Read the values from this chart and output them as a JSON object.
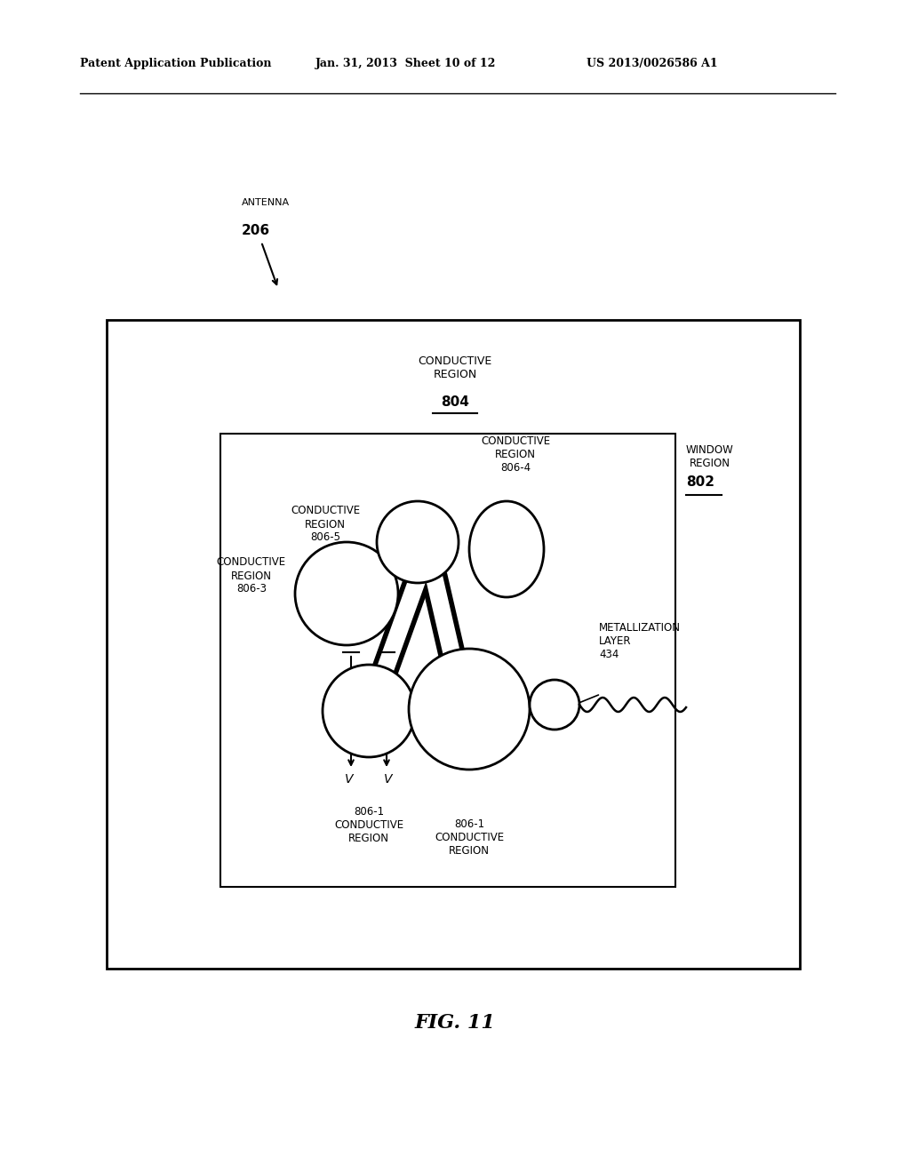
{
  "bg_color": "#ffffff",
  "header_left": "Patent Application Publication",
  "header_mid": "Jan. 31, 2013  Sheet 10 of 12",
  "header_right": "US 2013/0026586 A1",
  "fig_label": "FIG. 11",
  "antenna_label": "ANTENNA",
  "antenna_num": "206"
}
